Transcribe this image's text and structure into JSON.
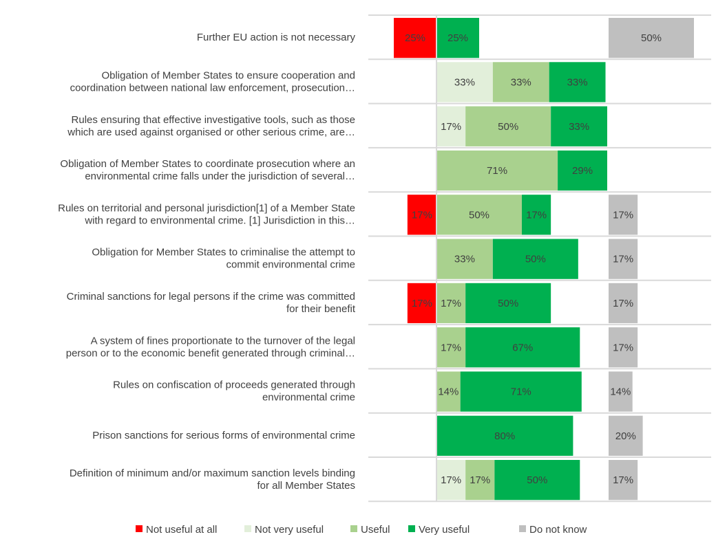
{
  "chart_data": {
    "type": "bar",
    "subtype": "diverging-stacked-horizontal",
    "categories": [
      [
        "Further EU action is not necessary"
      ],
      [
        "Obligation of Member States to ensure cooperation and",
        "coordination between national law enforcement, prosecution…"
      ],
      [
        "Rules ensuring that effective investigative tools, such as those",
        "which are used against organised or other serious crime, are…"
      ],
      [
        "Obligation of Member States to coordinate prosecution where an",
        "environmental crime falls under the jurisdiction of several…"
      ],
      [
        "Rules on territorial and personal jurisdiction[1] of a Member State",
        "with regard to environmental crime. [1] Jurisdiction in this…"
      ],
      [
        "Obligation for Member States to criminalise the attempt to",
        "commit environmental crime"
      ],
      [
        "Criminal sanctions for legal persons if the crime was committed",
        "for their benefit"
      ],
      [
        "A system of fines proportionate to the turnover of the legal",
        "person or to the economic benefit generated through criminal…"
      ],
      [
        "Rules on confiscation of proceeds generated through",
        "environmental crime"
      ],
      [
        "Prison sanctions for serious forms of environmental crime"
      ],
      [
        "Definition of minimum and/or maximum sanction levels binding",
        "for all Member States"
      ]
    ],
    "series": [
      {
        "name": "Not useful at all",
        "color": "#ff0000",
        "values": [
          25,
          0,
          0,
          0,
          17,
          0,
          17,
          0,
          0,
          0,
          0
        ]
      },
      {
        "name": "Not very useful",
        "color": "#e2efda",
        "values": [
          0,
          33,
          17,
          0,
          0,
          0,
          0,
          0,
          0,
          0,
          17
        ]
      },
      {
        "name": "Useful",
        "color": "#a9d18e",
        "values": [
          0,
          33,
          50,
          71,
          50,
          33,
          17,
          17,
          14,
          0,
          17
        ]
      },
      {
        "name": "Very useful",
        "color": "#00b050",
        "values": [
          25,
          33,
          33,
          29,
          17,
          50,
          50,
          67,
          71,
          80,
          50
        ]
      },
      {
        "name": "Do not know",
        "color": "#bfbfbf",
        "values": [
          50,
          0,
          0,
          0,
          17,
          17,
          17,
          17,
          14,
          20,
          17
        ]
      }
    ],
    "value_suffix": "%",
    "legend_position": "bottom",
    "xlabel": "",
    "ylabel": ""
  }
}
